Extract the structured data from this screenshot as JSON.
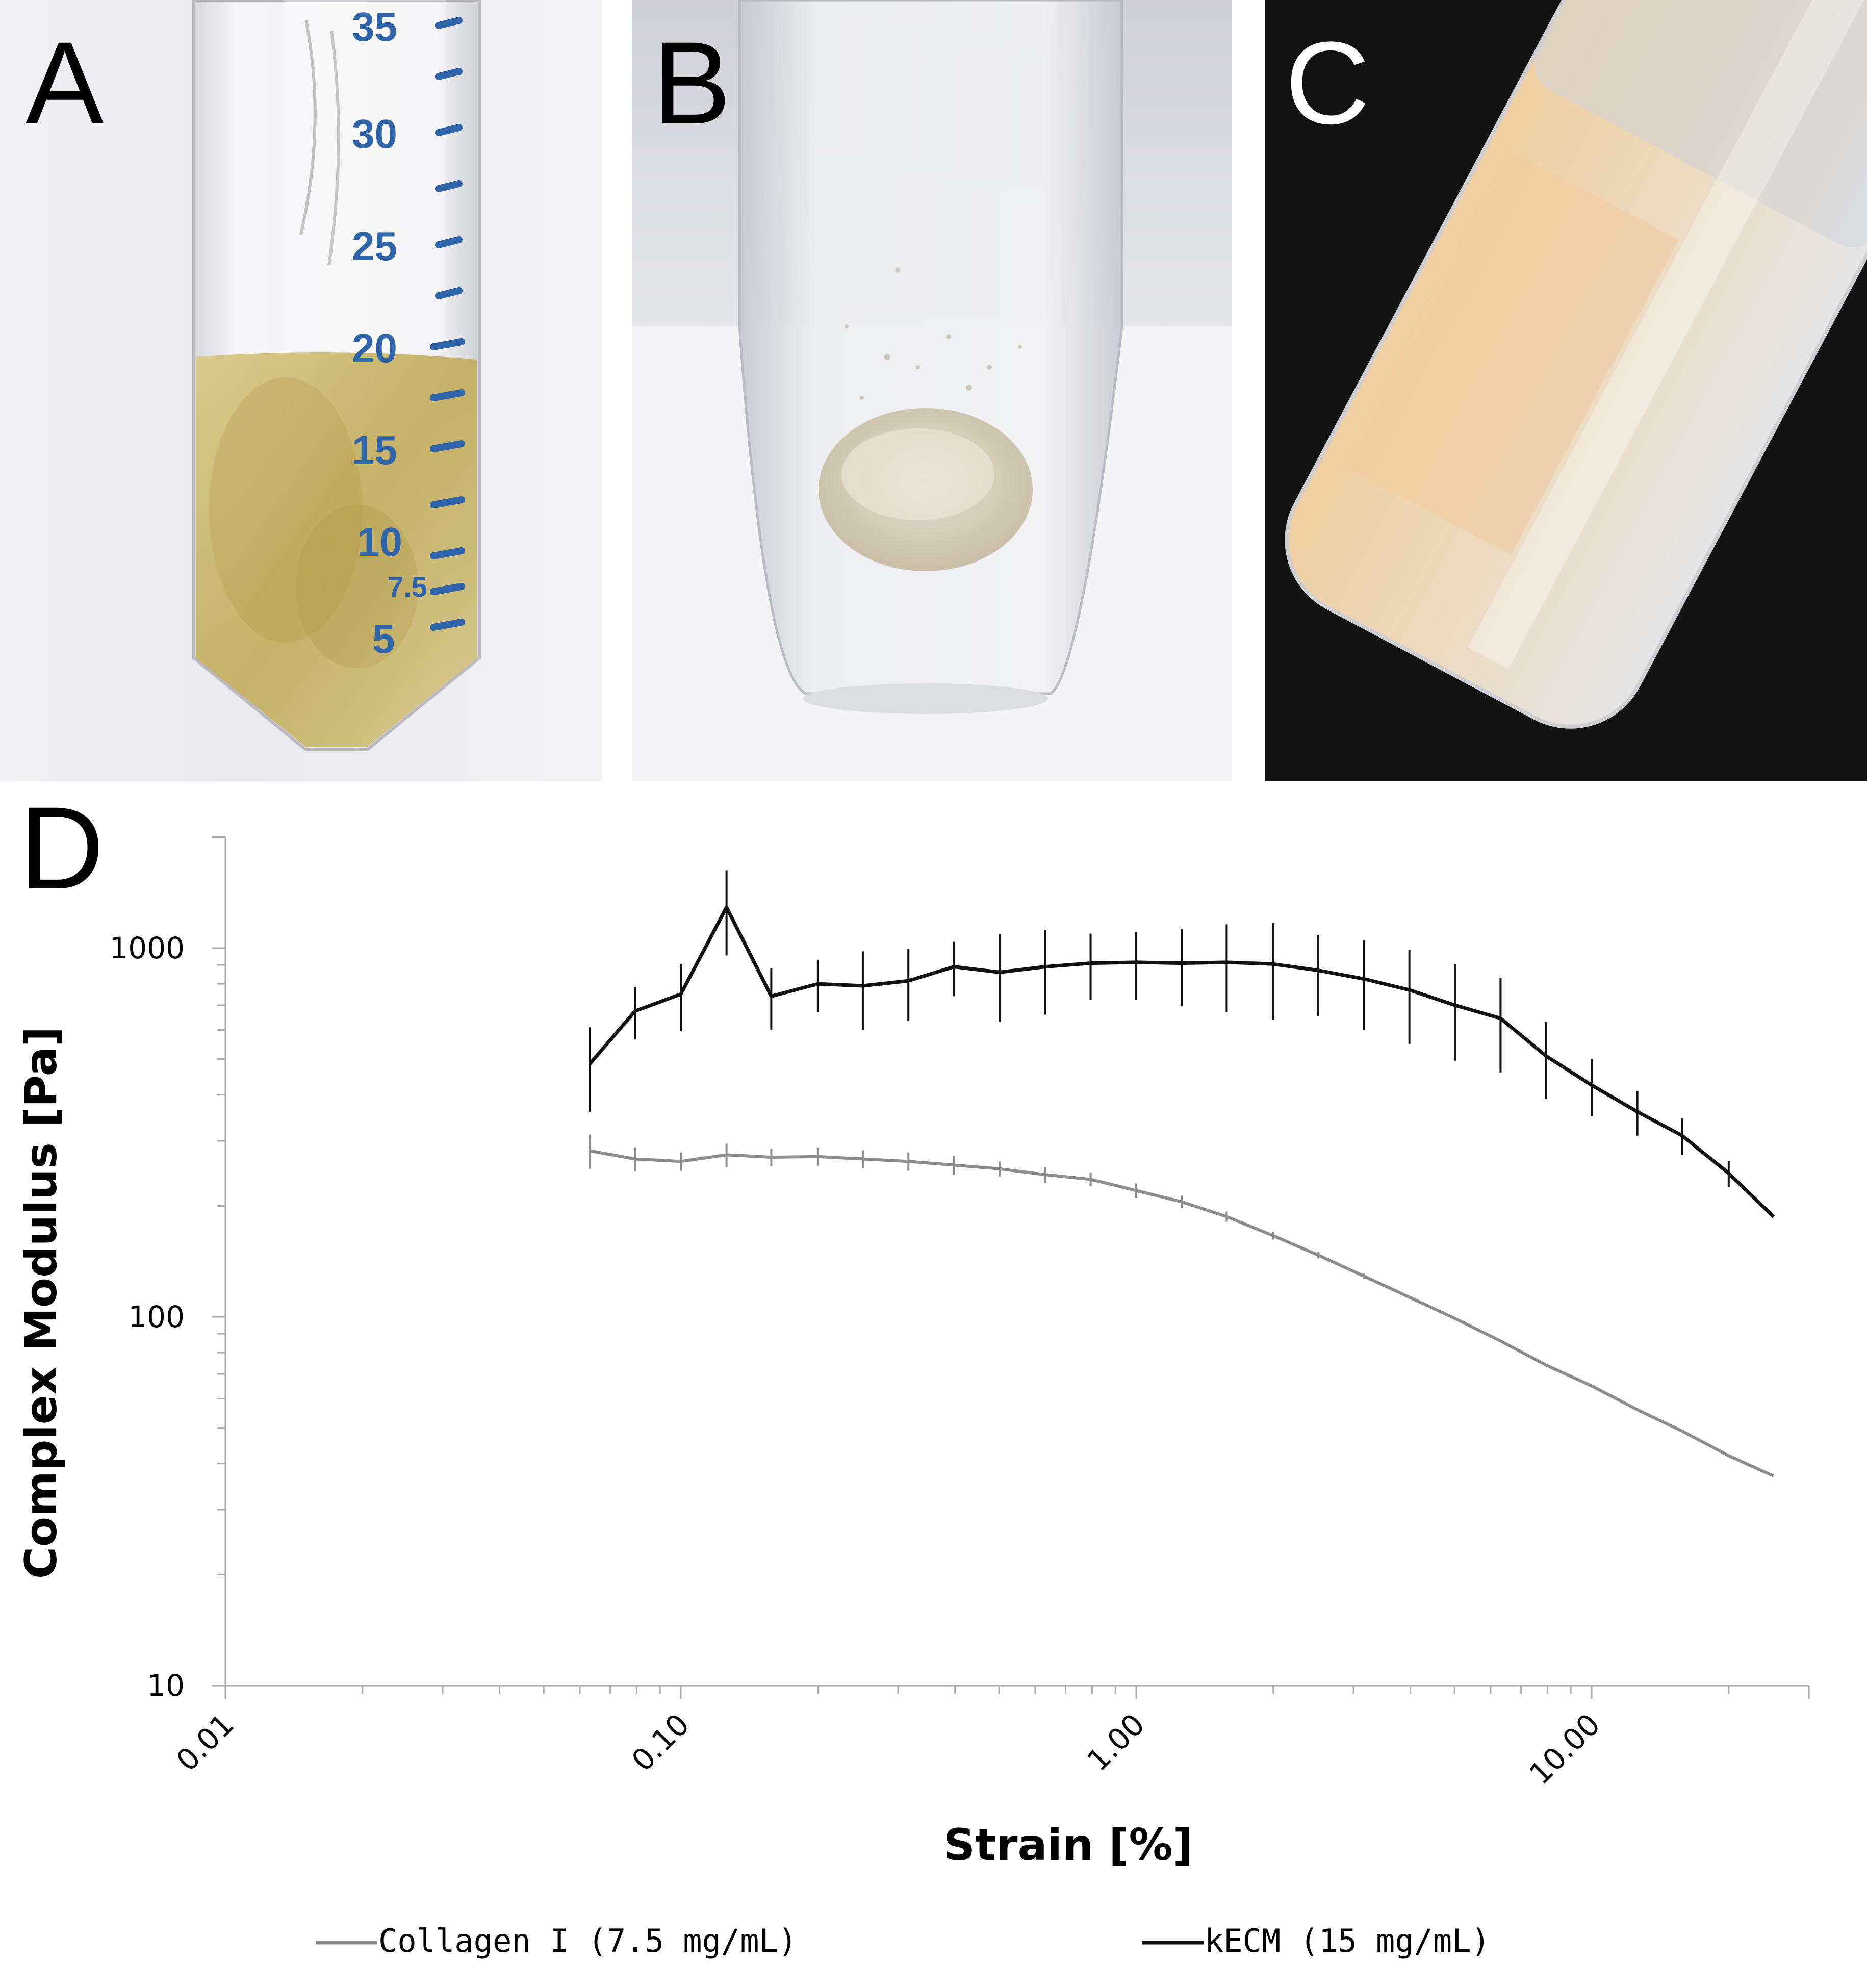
{
  "panels": [
    {
      "letter": "A",
      "color": "#000000"
    },
    {
      "letter": "B",
      "color": "#000000"
    },
    {
      "letter": "C",
      "color": "#ffffff"
    },
    {
      "letter": "D",
      "color": "#000000"
    }
  ],
  "tube_a": {
    "scale_labels": [
      "35",
      "30",
      "25",
      "20",
      "15",
      "10",
      "7.5",
      "5"
    ],
    "scale_color": "#2f64a8",
    "liquid_color": "#c9b56a"
  },
  "chart_data": {
    "type": "line",
    "xlabel": "Strain [%]",
    "ylabel": "Complex Modulus [Pa]",
    "x_scale": "log",
    "y_scale": "log",
    "xlim": [
      0.01,
      30
    ],
    "ylim": [
      10,
      2000
    ],
    "x_ticks": [
      "0.01",
      "0.10",
      "1.00",
      "10.00"
    ],
    "y_ticks": [
      "10",
      "100",
      "1000"
    ],
    "legend_position": "bottom",
    "grid": false,
    "series": [
      {
        "name": "Collagen I (7.5 mg/mL)",
        "color": "#8c8c8c",
        "x": [
          0.0631,
          0.0794,
          0.1,
          0.126,
          0.158,
          0.2,
          0.251,
          0.316,
          0.398,
          0.501,
          0.631,
          0.794,
          1.0,
          1.26,
          1.58,
          2.0,
          2.51,
          3.16,
          3.98,
          5.01,
          6.31,
          7.94,
          10.0,
          12.6,
          15.8,
          20.0,
          25.1
        ],
        "y": [
          282,
          268,
          264,
          275,
          271,
          272,
          268,
          264,
          258,
          252,
          243,
          236,
          220,
          205,
          187,
          166,
          147,
          129,
          113,
          99,
          86,
          74,
          65,
          56,
          49,
          42,
          37
        ],
        "err": [
          30,
          20,
          15,
          20,
          15,
          15,
          15,
          15,
          15,
          12,
          12,
          10,
          10,
          8,
          6,
          4,
          3,
          2,
          1,
          0,
          0,
          0,
          0,
          0,
          0,
          0,
          0
        ]
      },
      {
        "name": "kECM (15 mg/mL)",
        "color": "#111111",
        "x": [
          0.0631,
          0.0794,
          0.1,
          0.126,
          0.158,
          0.2,
          0.251,
          0.316,
          0.398,
          0.501,
          0.631,
          0.794,
          1.0,
          1.26,
          1.58,
          2.0,
          2.51,
          3.16,
          3.98,
          5.01,
          6.31,
          7.94,
          10.0,
          12.6,
          15.8,
          20.0,
          25.1
        ],
        "y": [
          485,
          675,
          750,
          1290,
          740,
          800,
          790,
          815,
          890,
          860,
          890,
          910,
          915,
          910,
          915,
          905,
          870,
          825,
          770,
          700,
          645,
          510,
          425,
          360,
          310,
          245,
          187
        ],
        "err": [
          125,
          110,
          155,
          335,
          140,
          130,
          190,
          180,
          150,
          230,
          230,
          185,
          190,
          215,
          245,
          265,
          215,
          225,
          220,
          205,
          185,
          120,
          75,
          50,
          35,
          20,
          0
        ]
      }
    ]
  }
}
